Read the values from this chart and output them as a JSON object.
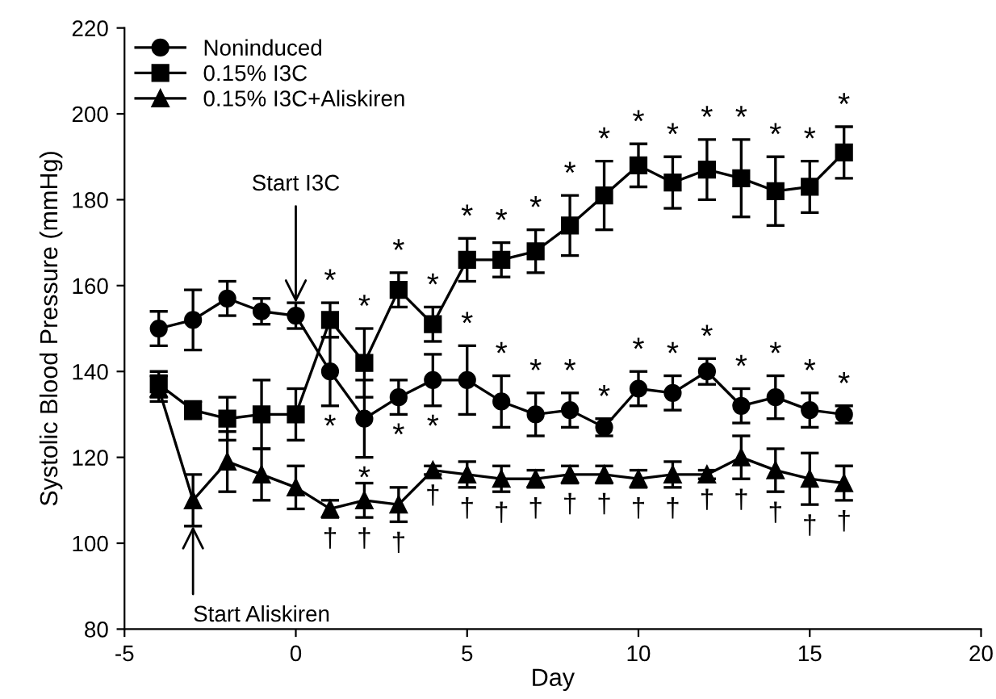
{
  "chart_data": {
    "type": "line",
    "xlabel": "Day",
    "ylabel": "Systolic Blood Pressure (mmHg)",
    "x": [
      -4,
      -3,
      -2,
      -1,
      0,
      1,
      2,
      3,
      4,
      5,
      6,
      7,
      8,
      9,
      10,
      11,
      12,
      13,
      14,
      15,
      16
    ],
    "series": [
      {
        "name": "Noninduced",
        "color": "#000000",
        "marker": "circle",
        "values": [
          150,
          152,
          157,
          154,
          153,
          140,
          129,
          134,
          138,
          138,
          133,
          130,
          131,
          127,
          136,
          135,
          140,
          132,
          134,
          131,
          130
        ],
        "errors": [
          4,
          7,
          4,
          3,
          3,
          8,
          9,
          4,
          6,
          8,
          6,
          5,
          4,
          2,
          4,
          4,
          3,
          4,
          5,
          4,
          2
        ]
      },
      {
        "name": "0.15% I3C",
        "color": "#000000",
        "marker": "square",
        "values": [
          137,
          131,
          129,
          130,
          130,
          152,
          142,
          159,
          151,
          166,
          166,
          168,
          174,
          181,
          188,
          184,
          187,
          185,
          182,
          183,
          191
        ],
        "errors": [
          3,
          2,
          5,
          8,
          6,
          4,
          8,
          4,
          4,
          5,
          4,
          5,
          7,
          8,
          5,
          6,
          7,
          9,
          8,
          6,
          6
        ]
      },
      {
        "name": "0.15% I3C+Aliskiren",
        "color": "#000000",
        "marker": "triangle",
        "values": [
          136,
          110,
          119,
          116,
          113,
          108,
          110,
          109,
          117,
          116,
          115,
          115,
          116,
          116,
          115,
          116,
          116,
          120,
          117,
          115,
          114
        ],
        "errors": [
          3,
          6,
          7,
          6,
          5,
          2,
          4,
          4,
          1,
          3,
          3,
          2,
          2,
          2,
          2,
          3,
          1,
          5,
          5,
          6,
          4
        ]
      }
    ],
    "xlim": [
      -5,
      20
    ],
    "xticks": [
      -5,
      0,
      5,
      10,
      15,
      20
    ],
    "ylim": [
      80,
      220
    ],
    "yticks": [
      80,
      100,
      120,
      140,
      160,
      180,
      200,
      220
    ],
    "grid": false,
    "legend": "top left",
    "line_style": "solid",
    "annotations": [
      {
        "text": "Start I3C",
        "x": 0,
        "y": 156
      },
      {
        "text": "Start Aliskiren",
        "x": -3,
        "y": 104
      },
      {
        "text": "*",
        "x": 1,
        "y": 156
      },
      {
        "text": "*",
        "x": 2,
        "y": 150
      },
      {
        "text": "*",
        "x": 3,
        "y": 163
      },
      {
        "text": "*",
        "x": 4,
        "y": 155
      },
      {
        "text": "*",
        "x": 5,
        "y": 171
      },
      {
        "text": "*",
        "x": 6,
        "y": 170
      },
      {
        "text": "*",
        "x": 7,
        "y": 173
      },
      {
        "text": "*",
        "x": 8,
        "y": 181
      },
      {
        "text": "*",
        "x": 9,
        "y": 189
      },
      {
        "text": "*",
        "x": 10,
        "y": 193
      },
      {
        "text": "*",
        "x": 11,
        "y": 190
      },
      {
        "text": "*",
        "x": 12,
        "y": 194
      },
      {
        "text": "*",
        "x": 13,
        "y": 194
      },
      {
        "text": "*",
        "x": 14,
        "y": 190
      },
      {
        "text": "*",
        "x": 15,
        "y": 189
      },
      {
        "text": "*",
        "x": 16,
        "y": 197
      },
      {
        "text": "*",
        "x": 1,
        "y": 132
      },
      {
        "text": "*",
        "x": 2,
        "y": 120
      },
      {
        "text": "*",
        "x": 3,
        "y": 130
      },
      {
        "text": "*",
        "x": 4,
        "y": 132
      },
      {
        "text": "*",
        "x": 5,
        "y": 146
      },
      {
        "text": "*",
        "x": 6,
        "y": 139
      },
      {
        "text": "*",
        "x": 7,
        "y": 135
      },
      {
        "text": "*",
        "x": 8,
        "y": 135
      },
      {
        "text": "*",
        "x": 9,
        "y": 129
      },
      {
        "text": "*",
        "x": 10,
        "y": 140
      },
      {
        "text": "*",
        "x": 11,
        "y": 139
      },
      {
        "text": "*",
        "x": 12,
        "y": 143
      },
      {
        "text": "*",
        "x": 13,
        "y": 136
      },
      {
        "text": "*",
        "x": 14,
        "y": 139
      },
      {
        "text": "*",
        "x": 15,
        "y": 135
      },
      {
        "text": "*",
        "x": 16,
        "y": 132
      },
      {
        "text": "†",
        "x": 1,
        "y": 106
      },
      {
        "text": "†",
        "x": 2,
        "y": 106
      },
      {
        "text": "†",
        "x": 3,
        "y": 105
      },
      {
        "text": "†",
        "x": 4,
        "y": 116
      },
      {
        "text": "†",
        "x": 5,
        "y": 113
      },
      {
        "text": "†",
        "x": 6,
        "y": 112
      },
      {
        "text": "†",
        "x": 7,
        "y": 113
      },
      {
        "text": "†",
        "x": 8,
        "y": 114
      },
      {
        "text": "†",
        "x": 9,
        "y": 114
      },
      {
        "text": "†",
        "x": 10,
        "y": 113
      },
      {
        "text": "†",
        "x": 11,
        "y": 113
      },
      {
        "text": "†",
        "x": 12,
        "y": 115
      },
      {
        "text": "†",
        "x": 13,
        "y": 115
      },
      {
        "text": "†",
        "x": 14,
        "y": 112
      },
      {
        "text": "†",
        "x": 15,
        "y": 109
      },
      {
        "text": "†",
        "x": 16,
        "y": 110
      }
    ]
  }
}
